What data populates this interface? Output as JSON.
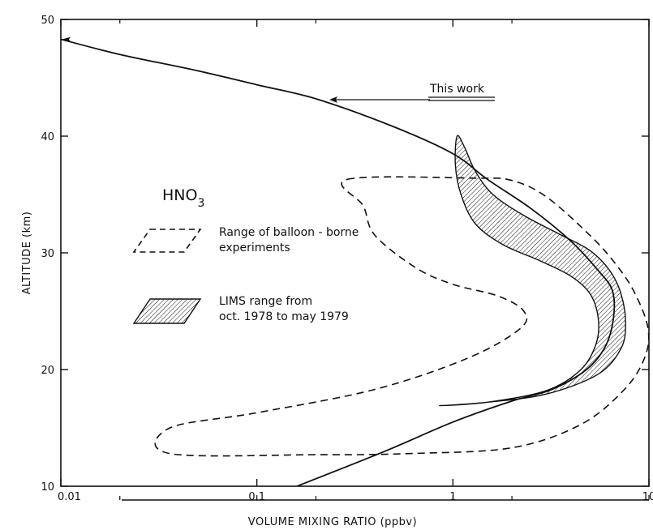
{
  "chart_data": {
    "type": "line",
    "title": "",
    "xlabel": "VOLUME MIXING RATIO (ppbv)",
    "ylabel": "ALTITUDE (km)",
    "xscale": "log",
    "xlim": [
      0.01,
      10
    ],
    "ylim": [
      10,
      50
    ],
    "x_ticks": [
      {
        "value": 0.01,
        "label": "0.01"
      },
      {
        "value": 0.1,
        "label": "0.1"
      },
      {
        "value": 1,
        "label": "1"
      },
      {
        "value": 10,
        "label": "10"
      }
    ],
    "y_ticks": [
      {
        "value": 10,
        "label": "10"
      },
      {
        "value": 20,
        "label": "20"
      },
      {
        "value": 30,
        "label": "30"
      },
      {
        "value": 40,
        "label": "40"
      },
      {
        "value": 50,
        "label": "50"
      }
    ],
    "species_label": {
      "base": "HNO",
      "sub": "3"
    },
    "series": [
      {
        "name": "This work",
        "style": "solid",
        "points": [
          {
            "x": 0.01,
            "y": 48.3
          },
          {
            "x": 0.02,
            "y": 47.0
          },
          {
            "x": 0.05,
            "y": 45.6
          },
          {
            "x": 0.1,
            "y": 44.4
          },
          {
            "x": 0.2,
            "y": 43.2
          },
          {
            "x": 0.5,
            "y": 40.8
          },
          {
            "x": 1.0,
            "y": 38.5
          },
          {
            "x": 1.5,
            "y": 36.3
          },
          {
            "x": 2.5,
            "y": 33.8
          },
          {
            "x": 4.0,
            "y": 31.0
          },
          {
            "x": 5.5,
            "y": 28.5
          },
          {
            "x": 6.5,
            "y": 26.8
          },
          {
            "x": 6.6,
            "y": 24.5
          },
          {
            "x": 6.0,
            "y": 22.0
          },
          {
            "x": 4.8,
            "y": 20.0
          },
          {
            "x": 3.2,
            "y": 18.3
          },
          {
            "x": 2.0,
            "y": 17.3
          },
          {
            "x": 1.0,
            "y": 15.5
          },
          {
            "x": 0.45,
            "y": 13.0
          },
          {
            "x": 0.16,
            "y": 10.0
          }
        ]
      }
    ],
    "bands": [
      {
        "name": "Range of balloon - borne experiments",
        "style": "dashed",
        "points": [
          {
            "x": 0.29,
            "y": 36.3
          },
          {
            "x": 1.3,
            "y": 36.4
          },
          {
            "x": 2.0,
            "y": 36.2
          },
          {
            "x": 3.0,
            "y": 34.8
          },
          {
            "x": 5.0,
            "y": 31.5
          },
          {
            "x": 6.8,
            "y": 29.0
          },
          {
            "x": 8.5,
            "y": 26.5
          },
          {
            "x": 9.9,
            "y": 23.5
          },
          {
            "x": 9.5,
            "y": 21.0
          },
          {
            "x": 7.5,
            "y": 18.3
          },
          {
            "x": 4.5,
            "y": 15.3
          },
          {
            "x": 2.0,
            "y": 13.3
          },
          {
            "x": 0.6,
            "y": 12.8
          },
          {
            "x": 0.2,
            "y": 12.7
          },
          {
            "x": 0.036,
            "y": 12.8
          },
          {
            "x": 0.036,
            "y": 15.0
          },
          {
            "x": 0.1,
            "y": 16.3
          },
          {
            "x": 0.4,
            "y": 18.3
          },
          {
            "x": 1.2,
            "y": 21.0
          },
          {
            "x": 2.2,
            "y": 23.5
          },
          {
            "x": 2.3,
            "y": 25.0
          },
          {
            "x": 1.7,
            "y": 26.3
          },
          {
            "x": 1.0,
            "y": 27.3
          },
          {
            "x": 0.65,
            "y": 28.7
          },
          {
            "x": 0.4,
            "y": 31.5
          },
          {
            "x": 0.35,
            "y": 34.0
          },
          {
            "x": 0.29,
            "y": 36.3
          }
        ]
      },
      {
        "name": "LIMS range from oct. 1978 to may 1979",
        "style": "hatched",
        "points": [
          {
            "x": 1.05,
            "y": 40.0
          },
          {
            "x": 1.15,
            "y": 39.0
          },
          {
            "x": 1.3,
            "y": 37.0
          },
          {
            "x": 1.6,
            "y": 35.0
          },
          {
            "x": 2.3,
            "y": 33.2
          },
          {
            "x": 3.5,
            "y": 31.6
          },
          {
            "x": 5.0,
            "y": 30.2
          },
          {
            "x": 6.3,
            "y": 28.5
          },
          {
            "x": 7.2,
            "y": 26.5
          },
          {
            "x": 7.6,
            "y": 24.0
          },
          {
            "x": 7.2,
            "y": 21.8
          },
          {
            "x": 5.5,
            "y": 19.6
          },
          {
            "x": 3.0,
            "y": 17.9
          },
          {
            "x": 1.5,
            "y": 17.2
          },
          {
            "x": 0.85,
            "y": 16.9
          },
          {
            "x": 1.5,
            "y": 17.2
          },
          {
            "x": 3.0,
            "y": 18.2
          },
          {
            "x": 4.5,
            "y": 20.0
          },
          {
            "x": 5.4,
            "y": 22.3
          },
          {
            "x": 5.5,
            "y": 24.5
          },
          {
            "x": 5.0,
            "y": 26.5
          },
          {
            "x": 4.0,
            "y": 28.0
          },
          {
            "x": 2.8,
            "y": 29.3
          },
          {
            "x": 1.8,
            "y": 30.7
          },
          {
            "x": 1.3,
            "y": 32.5
          },
          {
            "x": 1.1,
            "y": 35.0
          },
          {
            "x": 1.03,
            "y": 37.5
          },
          {
            "x": 1.05,
            "y": 40.0
          }
        ]
      }
    ],
    "legend": [
      {
        "symbol": "dashed-parallelogram",
        "line1": "Range of balloon - borne",
        "line2": "experiments"
      },
      {
        "symbol": "hatched-parallelogram",
        "line1": "LIMS range from",
        "line2": "oct. 1978 to may 1979"
      }
    ],
    "annotation": {
      "text": "This work",
      "points_to": {
        "x": 0.22,
        "y": 43.1
      },
      "position": "top-right"
    },
    "grid": false
  }
}
